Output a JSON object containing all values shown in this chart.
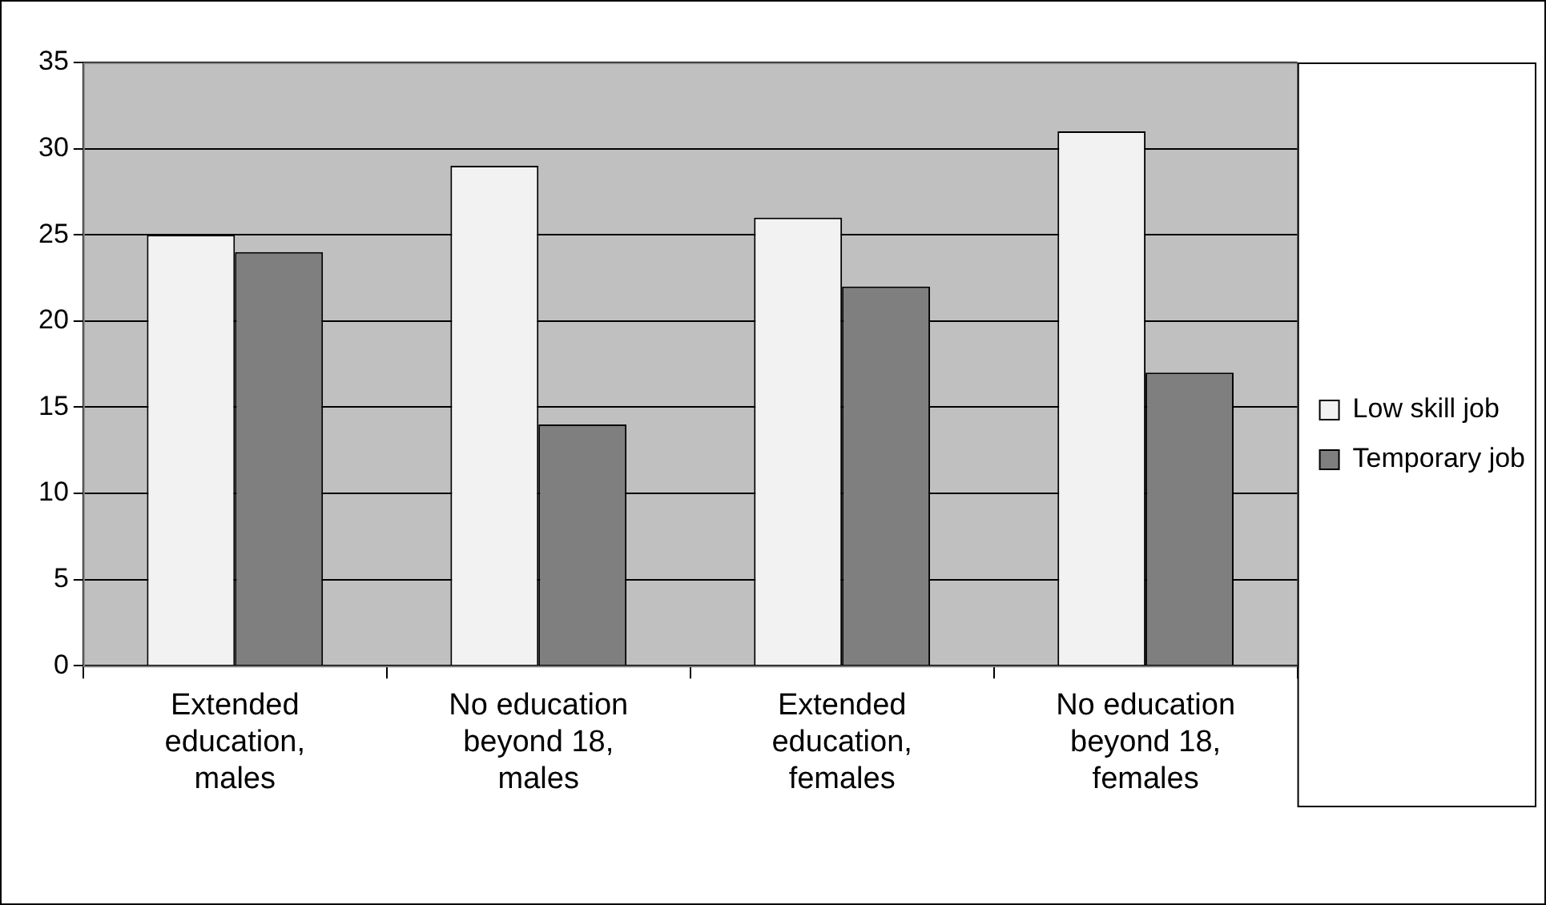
{
  "chart_data": {
    "type": "bar",
    "categories": [
      "Extended\neducation,\nmales",
      "No education\nbeyond 18,\nmales",
      "Extended\neducation,\nfemales",
      "No education\nbeyond 18,\nfemales"
    ],
    "series": [
      {
        "name": "Low skill job",
        "color": "#f2f2f2",
        "values": [
          25,
          29,
          26,
          31
        ]
      },
      {
        "name": "Temporary job",
        "color": "#7f7f7f",
        "values": [
          24,
          14,
          22,
          17
        ]
      }
    ],
    "ylim": [
      0,
      35
    ],
    "yticks": [
      0,
      5,
      10,
      15,
      20,
      25,
      30,
      35
    ],
    "grid": "y",
    "legend": "right"
  }
}
